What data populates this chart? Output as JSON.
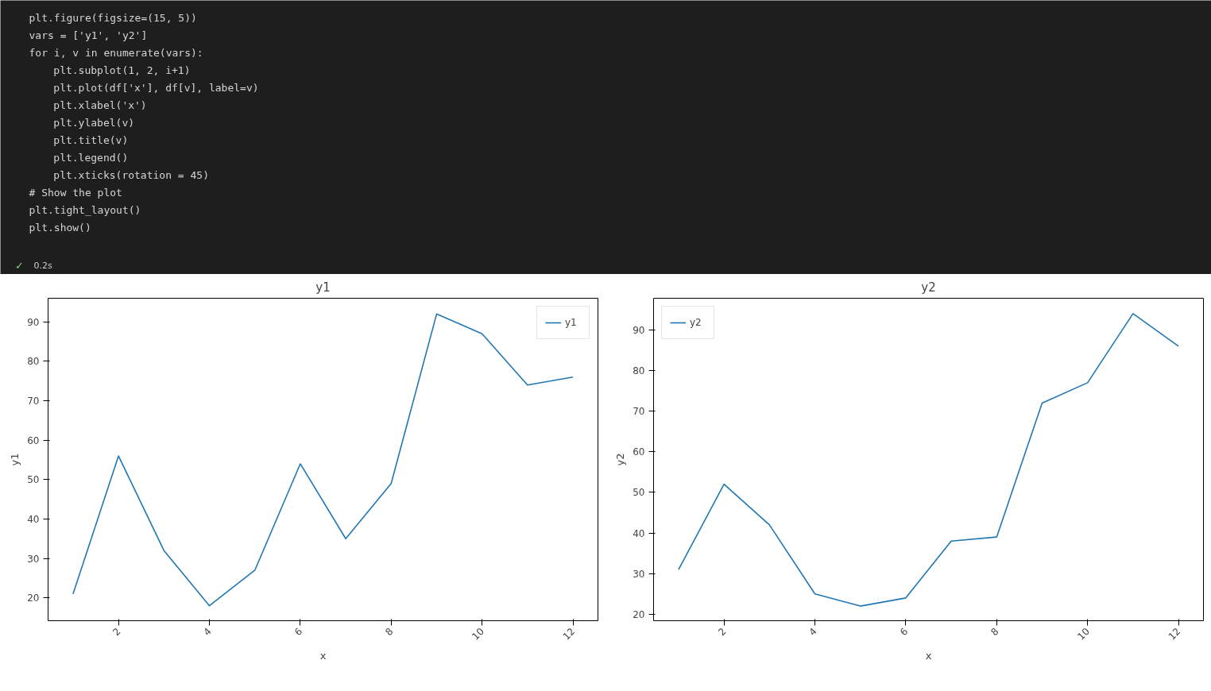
{
  "chart_data": [
    {
      "type": "other",
      "annotations": [
        "plt.figure(figsize=(15, 5))",
        "vars = ['y1', 'y2']",
        "for i, v in enumerate(vars):",
        "    plt.subplot(1, 2, i+1)",
        "    plt.plot(df['x'], df[v], label=v)",
        "    plt.xlabel('x')",
        "    plt.ylabel(v)",
        "    plt.title(v)",
        "    plt.legend()",
        "    plt.xticks(rotation = 45)",
        "# Show the plot",
        "plt.tight_layout()",
        "plt.show()",
        "✓",
        "0.2s"
      ]
    },
    {
      "type": "line",
      "title": "y1",
      "xlabel": "x",
      "ylabel": "y1",
      "x": [
        1,
        2,
        3,
        4,
        5,
        6,
        7,
        8,
        9,
        10,
        11,
        12
      ],
      "series": [
        {
          "name": "y1",
          "color": "#1f77b4",
          "values": [
            21,
            56,
            32,
            18,
            27,
            54,
            35,
            49,
            92,
            87,
            74,
            76
          ]
        }
      ],
      "xlim": [
        0.45,
        12.55
      ],
      "xticks": [
        2,
        4,
        6,
        8,
        10,
        12
      ],
      "ylim": [
        14.2,
        96
      ],
      "yticks": [
        20,
        30,
        40,
        50,
        60,
        70,
        80,
        90
      ],
      "legend": "top right",
      "grid": false
    },
    {
      "type": "line",
      "title": "y2",
      "xlabel": "x",
      "ylabel": "y2",
      "x": [
        1,
        2,
        3,
        4,
        5,
        6,
        7,
        8,
        9,
        10,
        11,
        12
      ],
      "series": [
        {
          "name": "y2",
          "color": "#1f77b4",
          "values": [
            31,
            52,
            42,
            25,
            22,
            24,
            38,
            39,
            72,
            77,
            94,
            86
          ]
        }
      ],
      "xlim": [
        0.45,
        12.55
      ],
      "xticks": [
        2,
        4,
        6,
        8,
        10,
        12
      ],
      "ylim": [
        18.4,
        97.8
      ],
      "yticks": [
        20,
        30,
        40,
        50,
        60,
        70,
        80,
        90
      ],
      "legend": "top left",
      "grid": false
    }
  ]
}
